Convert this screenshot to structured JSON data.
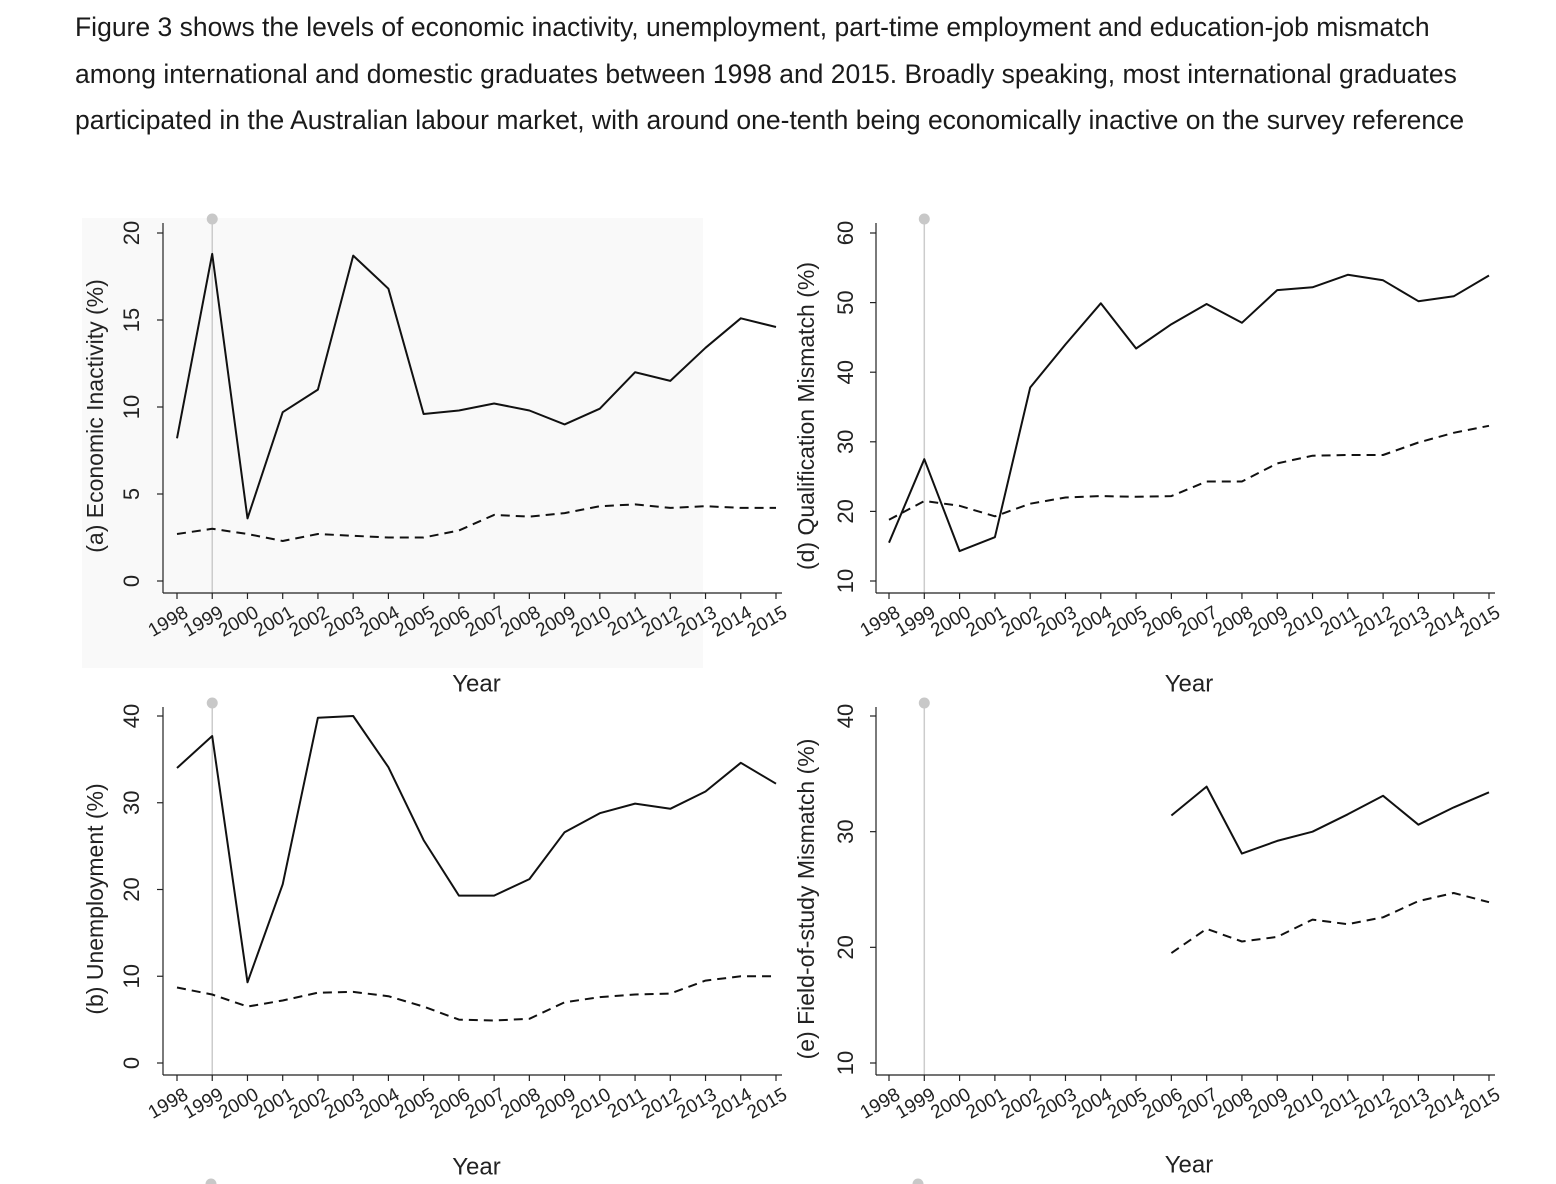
{
  "intro_text": {
    "line1": "Figure 3 shows the levels of economic inactivity, unemployment, part-time employment and education-job mismatch",
    "line2": "among international and domestic graduates between 1998 and 2015. Broadly speaking, most international graduates",
    "line3": "participated in the Australian labour market, with around one-tenth being economically inactive on the survey reference"
  },
  "chart_data": [
    {
      "id": "a",
      "type": "line",
      "title": "",
      "ylabel": "(a) Economic Inactivity (%)",
      "xlabel": "Year",
      "ylim": [
        0,
        20
      ],
      "yticks": [
        0,
        5,
        10,
        15,
        20
      ],
      "x": [
        1998,
        1999,
        2000,
        2001,
        2002,
        2003,
        2004,
        2005,
        2006,
        2007,
        2008,
        2009,
        2010,
        2011,
        2012,
        2013,
        2014,
        2015
      ],
      "marker_year": 1999,
      "series": [
        {
          "style": "solid",
          "values": [
            8.2,
            18.8,
            3.6,
            9.7,
            11.0,
            18.7,
            16.8,
            9.6,
            9.8,
            10.2,
            9.8,
            9.0,
            9.9,
            12.0,
            11.5,
            13.4,
            15.1,
            14.6
          ]
        },
        {
          "style": "dashed",
          "values": [
            2.7,
            3.0,
            2.7,
            2.3,
            2.7,
            2.6,
            2.5,
            2.5,
            2.9,
            3.8,
            3.7,
            3.9,
            4.3,
            4.4,
            4.2,
            4.3,
            4.2,
            4.2
          ]
        }
      ]
    },
    {
      "id": "d",
      "type": "line",
      "title": "",
      "ylabel": "(d) Qualification Mismatch (%)",
      "xlabel": "Year",
      "ylim": [
        10,
        60
      ],
      "yticks": [
        10,
        20,
        30,
        40,
        50,
        60
      ],
      "x": [
        1998,
        1999,
        2000,
        2001,
        2002,
        2003,
        2004,
        2005,
        2006,
        2007,
        2008,
        2009,
        2010,
        2011,
        2012,
        2013,
        2014,
        2015
      ],
      "marker_year": 1999,
      "series": [
        {
          "style": "solid",
          "values": [
            15.5,
            27.5,
            14.3,
            16.3,
            37.8,
            44.0,
            49.9,
            43.4,
            46.9,
            49.8,
            47.1,
            51.8,
            52.2,
            54.0,
            53.2,
            50.2,
            50.9,
            53.9
          ]
        },
        {
          "style": "dashed",
          "values": [
            18.8,
            21.5,
            20.8,
            19.3,
            21.1,
            22.0,
            22.2,
            22.1,
            22.2,
            24.3,
            24.3,
            26.9,
            28.0,
            28.1,
            28.1,
            29.9,
            31.3,
            32.3
          ]
        }
      ]
    },
    {
      "id": "b",
      "type": "line",
      "title": "",
      "ylabel": "(b) Unemployment (%)",
      "xlabel": "Year",
      "ylim": [
        0,
        40
      ],
      "yticks": [
        0,
        10,
        20,
        30,
        40
      ],
      "x": [
        1998,
        1999,
        2000,
        2001,
        2002,
        2003,
        2004,
        2005,
        2006,
        2007,
        2008,
        2009,
        2010,
        2011,
        2012,
        2013,
        2014,
        2015
      ],
      "marker_year": 1999,
      "series": [
        {
          "style": "solid",
          "values": [
            34.0,
            37.7,
            9.3,
            20.6,
            39.8,
            40.0,
            34.1,
            25.7,
            19.3,
            19.3,
            21.2,
            26.6,
            28.8,
            29.9,
            29.3,
            31.3,
            34.6,
            32.2
          ]
        },
        {
          "style": "dashed",
          "values": [
            8.7,
            7.9,
            6.5,
            7.2,
            8.1,
            8.2,
            7.7,
            6.5,
            5.0,
            4.9,
            5.1,
            7.0,
            7.6,
            7.9,
            8.0,
            9.5,
            10.0,
            10.0
          ]
        }
      ]
    },
    {
      "id": "e",
      "type": "line",
      "title": "",
      "ylabel": "(e) Field-of-study Mismatch (%)",
      "xlabel": "Year",
      "ylim": [
        10,
        40
      ],
      "yticks": [
        10,
        20,
        30,
        40
      ],
      "x": [
        1998,
        1999,
        2000,
        2001,
        2002,
        2003,
        2004,
        2005,
        2006,
        2007,
        2008,
        2009,
        2010,
        2011,
        2012,
        2013,
        2014,
        2015
      ],
      "marker_year": 1999,
      "series": [
        {
          "style": "solid",
          "values": [
            null,
            null,
            null,
            null,
            null,
            null,
            null,
            null,
            31.4,
            33.9,
            28.1,
            29.2,
            30.0,
            31.5,
            33.1,
            30.6,
            32.1,
            33.4
          ]
        },
        {
          "style": "dashed",
          "values": [
            null,
            null,
            null,
            null,
            null,
            null,
            null,
            null,
            19.5,
            21.6,
            20.5,
            20.9,
            22.4,
            22.0,
            22.6,
            24.0,
            24.7,
            23.9
          ]
        }
      ]
    }
  ]
}
